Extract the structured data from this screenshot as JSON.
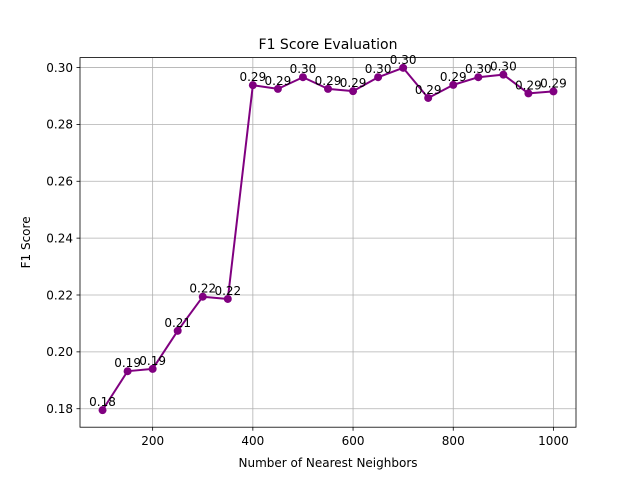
{
  "chart_data": {
    "type": "line",
    "title": "F1 Score Evaluation",
    "xlabel": "Number of Nearest Neighbors",
    "ylabel": "F1 Score",
    "xlim": [
      55,
      1045
    ],
    "ylim": [
      0.1735,
      0.3035
    ],
    "xticks": [
      200,
      400,
      600,
      800,
      1000
    ],
    "yticks": [
      0.18,
      0.2,
      0.22,
      0.24,
      0.26,
      0.28,
      0.3
    ],
    "ytick_labels": [
      "0.18",
      "0.20",
      "0.22",
      "0.24",
      "0.26",
      "0.28",
      "0.30"
    ],
    "grid": true,
    "line_color": "#800080",
    "marker": "circle",
    "series": [
      {
        "x": [
          100,
          150,
          200,
          250,
          300,
          350,
          400,
          450,
          500,
          550,
          600,
          650,
          700,
          750,
          800,
          850,
          900,
          950,
          1000
        ],
        "y": [
          0.1795,
          0.1932,
          0.194,
          0.2074,
          0.2194,
          0.2186,
          0.2938,
          0.2925,
          0.2966,
          0.2925,
          0.2917,
          0.2966,
          0.2999,
          0.2893,
          0.2939,
          0.2966,
          0.2975,
          0.2909,
          0.2916
        ],
        "labels": [
          "0.18",
          "0.19",
          "0.19",
          "0.21",
          "0.22",
          "0.22",
          "0.29",
          "0.29",
          "0.30",
          "0.29",
          "0.29",
          "0.30",
          "0.30",
          "0.29",
          "0.29",
          "0.30",
          "0.30",
          "0.29",
          "0.29"
        ]
      }
    ]
  }
}
